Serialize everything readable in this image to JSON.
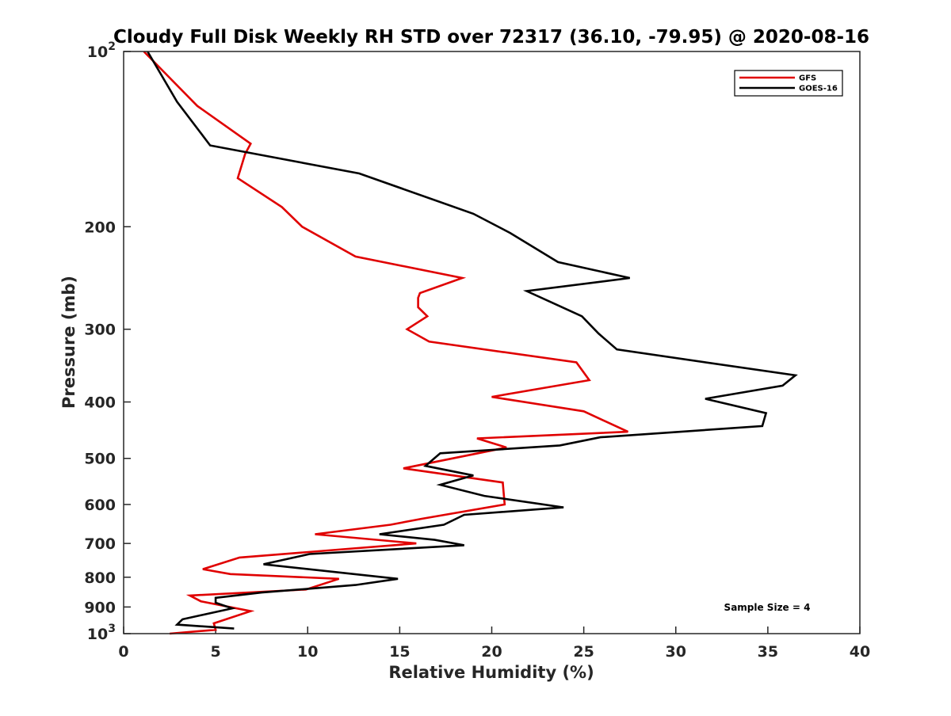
{
  "chart_data": {
    "type": "line",
    "title": "Cloudy Full Disk Weekly RH STD over 72317 (36.10, -79.95) @ 2020-08-16",
    "xlabel": "Relative Humidity (%)",
    "ylabel": "Pressure (mb)",
    "xlim": [
      0,
      40
    ],
    "ylim": [
      100,
      1000
    ],
    "y_scale": "log",
    "y_reversed": true,
    "grid": false,
    "legend_position": "top-right",
    "x_ticks": [
      "0",
      "5",
      "10",
      "15",
      "20",
      "25",
      "30",
      "35",
      "40"
    ],
    "y_tick_values": [
      100,
      200,
      300,
      400,
      500,
      600,
      700,
      800,
      900,
      1000
    ],
    "y_tick_labels": {
      "top": {
        "base": "10",
        "exp": "2"
      },
      "mid": [
        "200",
        "300",
        "400",
        "500",
        "600",
        "700",
        "800",
        "900"
      ],
      "bottom": {
        "base": "10",
        "exp": "3"
      }
    },
    "series": [
      {
        "name": "GFS",
        "color": "#e00000",
        "points": [
          [
            1.1,
            100
          ],
          [
            4.0,
            124
          ],
          [
            6.9,
            144
          ],
          [
            6.6,
            150
          ],
          [
            6.2,
            165
          ],
          [
            8.6,
            185
          ],
          [
            9.7,
            200
          ],
          [
            12.6,
            225
          ],
          [
            18.4,
            245
          ],
          [
            16.1,
            260
          ],
          [
            16.0,
            265
          ],
          [
            16.0,
            275
          ],
          [
            16.5,
            285
          ],
          [
            15.4,
            300
          ],
          [
            16.6,
            315
          ],
          [
            24.6,
            342
          ],
          [
            25.3,
            367
          ],
          [
            20.0,
            392
          ],
          [
            25.0,
            415
          ],
          [
            27.4,
            450
          ],
          [
            19.2,
            462
          ],
          [
            20.8,
            479
          ],
          [
            15.2,
            520
          ],
          [
            20.6,
            550
          ],
          [
            20.7,
            600
          ],
          [
            16.2,
            635
          ],
          [
            14.5,
            650
          ],
          [
            10.4,
            675
          ],
          [
            15.9,
            700
          ],
          [
            6.3,
            740
          ],
          [
            4.3,
            775
          ],
          [
            5.8,
            790
          ],
          [
            11.7,
            805
          ],
          [
            9.9,
            840
          ],
          [
            3.6,
            860
          ],
          [
            4.2,
            880
          ],
          [
            6.9,
            915
          ],
          [
            4.9,
            960
          ],
          [
            5.0,
            985
          ],
          [
            2.5,
            1000
          ]
        ]
      },
      {
        "name": "GOES-16",
        "color": "#000000",
        "points": [
          [
            1.3,
            100
          ],
          [
            2.9,
            122
          ],
          [
            4.7,
            145
          ],
          [
            12.8,
            162
          ],
          [
            19.0,
            190
          ],
          [
            21.0,
            205
          ],
          [
            23.6,
            230
          ],
          [
            27.5,
            245
          ],
          [
            21.9,
            258
          ],
          [
            24.9,
            285
          ],
          [
            25.8,
            305
          ],
          [
            26.8,
            325
          ],
          [
            36.5,
            360
          ],
          [
            35.8,
            375
          ],
          [
            31.6,
            395
          ],
          [
            34.9,
            418
          ],
          [
            34.7,
            440
          ],
          [
            25.9,
            460
          ],
          [
            23.7,
            475
          ],
          [
            17.2,
            490
          ],
          [
            16.4,
            515
          ],
          [
            19.0,
            535
          ],
          [
            17.2,
            555
          ],
          [
            19.6,
            580
          ],
          [
            23.9,
            607
          ],
          [
            18.5,
            625
          ],
          [
            17.4,
            650
          ],
          [
            13.9,
            675
          ],
          [
            16.9,
            690
          ],
          [
            18.5,
            705
          ],
          [
            10.1,
            730
          ],
          [
            7.6,
            760
          ],
          [
            14.9,
            805
          ],
          [
            12.6,
            825
          ],
          [
            7.5,
            850
          ],
          [
            5.0,
            868
          ],
          [
            5.0,
            885
          ],
          [
            5.9,
            905
          ],
          [
            3.2,
            945
          ],
          [
            2.9,
            965
          ],
          [
            6.0,
            980
          ]
        ]
      }
    ],
    "annotation": "Sample Size = 4"
  }
}
